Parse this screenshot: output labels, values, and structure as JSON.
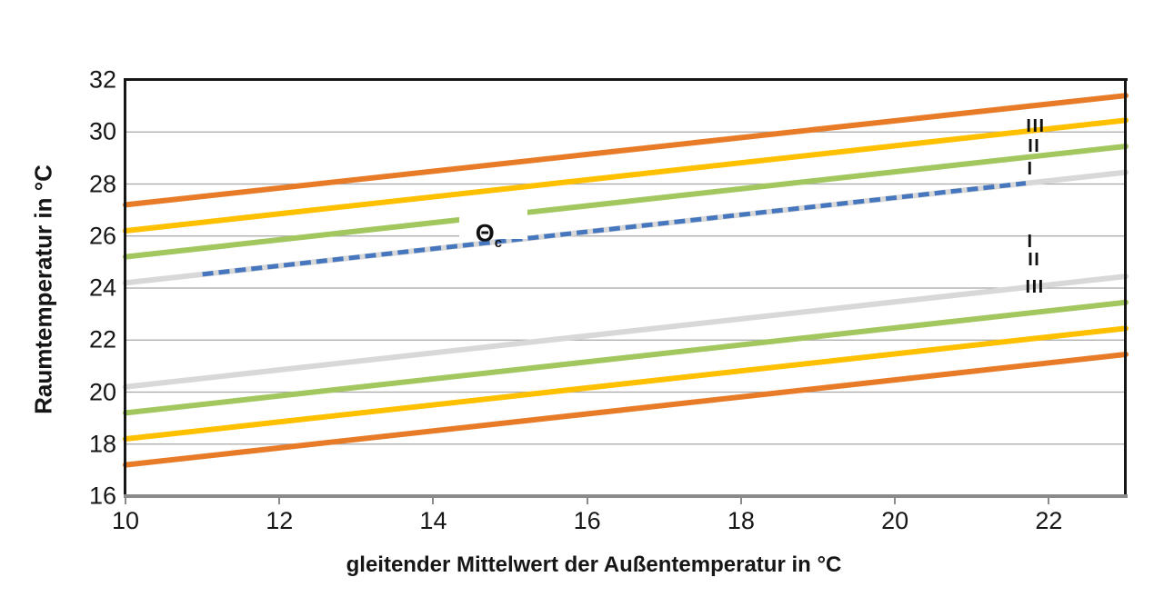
{
  "chart_data": {
    "type": "line",
    "title": "",
    "xlabel": "gleitender Mittelwert der Außentemperatur in °C",
    "ylabel": "Raumtemperatur in °C",
    "xlim": [
      10,
      23
    ],
    "ylim": [
      16,
      32
    ],
    "x_ticks": [
      10,
      12,
      14,
      16,
      18,
      20,
      22
    ],
    "y_ticks": [
      16,
      18,
      20,
      22,
      24,
      26,
      28,
      30,
      32
    ],
    "grid": "horizontal-only",
    "gridline_color": "#a6a6a6",
    "legend": "none",
    "series": [
      {
        "key": "upper-orange",
        "color": "#E87B28",
        "width": 6,
        "style": "solid",
        "segments": [
          [
            [
              10,
              27.2
            ],
            [
              23,
              31.4
            ]
          ]
        ]
      },
      {
        "key": "upper-yellow",
        "color": "#FFC000",
        "width": 6,
        "style": "solid",
        "segments": [
          [
            [
              10,
              26.2
            ],
            [
              23,
              30.45
            ]
          ]
        ]
      },
      {
        "key": "upper-green",
        "color": "#A3C75F",
        "width": 6,
        "style": "solid",
        "segments": [
          [
            [
              10,
              25.2
            ],
            [
              14.33,
              26.62
            ]
          ],
          [
            [
              15.23,
              26.91
            ],
            [
              23,
              29.45
            ]
          ]
        ]
      },
      {
        "key": "upper-gray",
        "color": "#D8D8D8",
        "width": 6,
        "style": "solid",
        "segments": [
          [
            [
              10,
              24.2
            ],
            [
              23,
              28.45
            ]
          ]
        ]
      },
      {
        "key": "theta-c-dashed",
        "color": "#4677BE",
        "width": 5,
        "style": "dashed",
        "dash": [
          12,
          6
        ],
        "segments": [
          [
            [
              11,
              24.53
            ],
            [
              21.7,
              28.03
            ]
          ]
        ]
      },
      {
        "key": "lower-gray",
        "color": "#D8D8D8",
        "width": 6,
        "style": "solid",
        "segments": [
          [
            [
              10,
              20.2
            ],
            [
              23,
              24.45
            ]
          ]
        ]
      },
      {
        "key": "lower-green",
        "color": "#A3C75F",
        "width": 6,
        "style": "solid",
        "segments": [
          [
            [
              10,
              19.2
            ],
            [
              23,
              23.45
            ]
          ]
        ]
      },
      {
        "key": "lower-yellow",
        "color": "#FFC000",
        "width": 6,
        "style": "solid",
        "segments": [
          [
            [
              10,
              18.2
            ],
            [
              23,
              22.45
            ]
          ]
        ]
      },
      {
        "key": "lower-orange",
        "color": "#E87B28",
        "width": 6,
        "style": "solid",
        "segments": [
          [
            [
              10,
              17.2
            ],
            [
              23,
              21.45
            ]
          ]
        ]
      }
    ],
    "annotations": [
      {
        "id": "upper-cat-III",
        "text": "III",
        "x": 21.83,
        "y": 30.21
      },
      {
        "id": "upper-cat-II",
        "text": "II",
        "x": 21.81,
        "y": 29.44
      },
      {
        "id": "upper-cat-I",
        "text": "I",
        "x": 21.76,
        "y": 28.56
      },
      {
        "id": "lower-cat-I",
        "text": "I",
        "x": 21.76,
        "y": 25.79
      },
      {
        "id": "lower-cat-II",
        "text": "II",
        "x": 21.81,
        "y": 25.09
      },
      {
        "id": "lower-cat-III",
        "text": "III",
        "x": 21.82,
        "y": 24.02
      },
      {
        "id": "theta-c",
        "text": "Θ",
        "sub": "c",
        "x": 14.72,
        "y": 26.1,
        "white_box": true
      }
    ]
  },
  "colors": {
    "axis": "#161616",
    "bottom_axis": "#8a8a8a",
    "gridline": "#a6a6a6",
    "orange": "#E87B28",
    "yellow": "#FFC000",
    "green": "#A3C75F",
    "gray": "#D8D8D8",
    "blue_dashed": "#4677BE"
  }
}
